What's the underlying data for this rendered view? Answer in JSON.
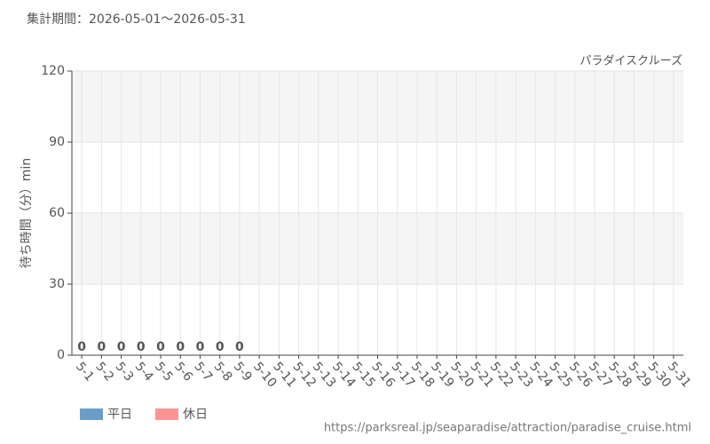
{
  "chart_data": {
    "type": "bar",
    "title": "集計期間：2026-05-01～2026-05-31",
    "subtitle": "パラダイスクルーズ",
    "y_label": "待ち時間（分）min",
    "source": "https://parksreal.jp/seaparadise/attraction/paradise_cruise.html",
    "categories": [
      "5-1",
      "5-2",
      "5-3",
      "5-4",
      "5-5",
      "5-6",
      "5-7",
      "5-8",
      "5-9",
      "5-10",
      "5-11",
      "5-12",
      "5-13",
      "5-14",
      "5-15",
      "5-16",
      "5-17",
      "5-18",
      "5-19",
      "5-20",
      "5-21",
      "5-22",
      "5-23",
      "5-24",
      "5-25",
      "5-26",
      "5-27",
      "5-28",
      "5-29",
      "5-30",
      "5-31"
    ],
    "category_colors": [
      "#444",
      "#f88",
      "#f88",
      "#f88",
      "#f88",
      "#f88",
      "#444",
      "#444",
      "#f88",
      "#f88",
      "#444",
      "#444",
      "#444",
      "#444",
      "#444",
      "#f88",
      "#f88",
      "#444",
      "#444",
      "#444",
      "#444",
      "#444",
      "#f88",
      "#f88",
      "#444",
      "#444",
      "#444",
      "#444",
      "#444",
      "#f88",
      "#f88"
    ],
    "series": [
      {
        "name": "平日",
        "color": "#6a9ec9",
        "values": [
          0,
          null,
          null,
          null,
          null,
          null,
          0,
          0,
          null,
          null,
          null,
          null,
          null,
          null,
          null,
          null,
          null,
          null,
          null,
          null,
          null,
          null,
          null,
          null,
          null,
          null,
          null,
          null,
          null,
          null,
          null
        ]
      },
      {
        "name": "休日",
        "color": "#ff9494",
        "values": [
          null,
          0,
          0,
          0,
          0,
          0,
          null,
          null,
          0,
          null,
          null,
          null,
          null,
          null,
          null,
          null,
          null,
          null,
          null,
          null,
          null,
          null,
          null,
          null,
          null,
          null,
          null,
          null,
          null,
          null,
          null
        ]
      }
    ],
    "ylim": [
      0,
      120
    ],
    "yticks": [
      0,
      30,
      60,
      90,
      120
    ],
    "grid": true
  }
}
